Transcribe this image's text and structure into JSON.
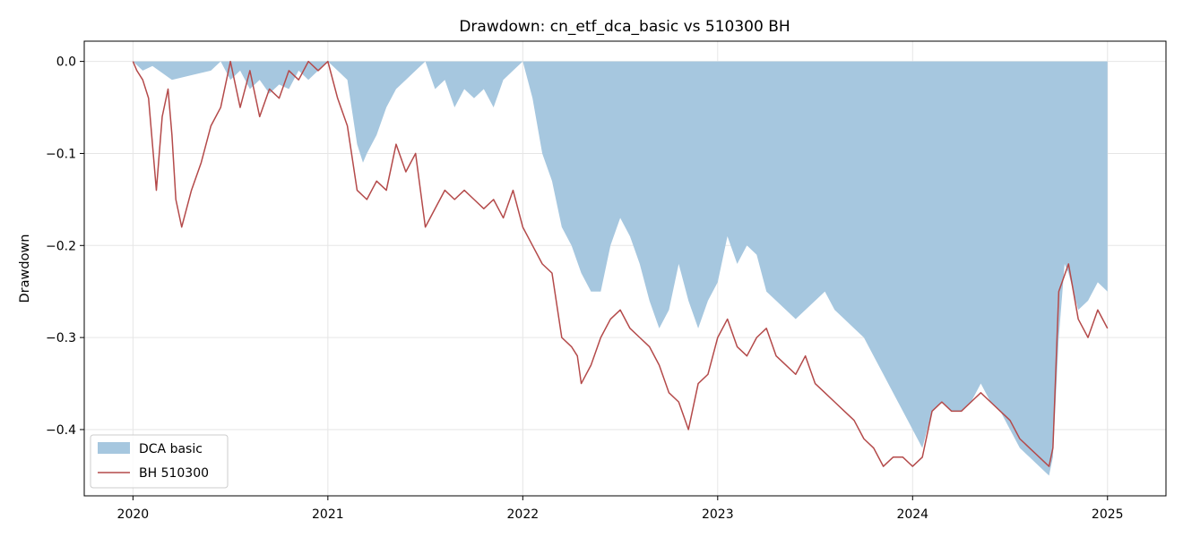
{
  "chart_data": {
    "type": "area",
    "title": "Drawdown: cn_etf_dca_basic vs 510300 BH",
    "xlabel": "",
    "ylabel": "Drawdown",
    "x_ticks": [
      "2020",
      "2021",
      "2022",
      "2023",
      "2024",
      "2025"
    ],
    "y_ticks": [
      0.0,
      -0.1,
      -0.2,
      -0.3,
      -0.4
    ],
    "y_tick_labels": [
      "0.0",
      "−0.1",
      "−0.2",
      "−0.3",
      "−0.4"
    ],
    "xlim": [
      2019.75,
      2025.3
    ],
    "ylim": [
      -0.472,
      0.022
    ],
    "grid": true,
    "legend_position": "lower-left",
    "series": [
      {
        "name": "DCA basic",
        "kind": "area",
        "color": "#a6c7df",
        "x": [
          2020.0,
          2020.05,
          2020.1,
          2020.2,
          2020.3,
          2020.4,
          2020.45,
          2020.5,
          2020.55,
          2020.6,
          2020.65,
          2020.7,
          2020.75,
          2020.8,
          2020.85,
          2020.9,
          2020.95,
          2021.0,
          2021.05,
          2021.1,
          2021.15,
          2021.18,
          2021.2,
          2021.25,
          2021.3,
          2021.35,
          2021.4,
          2021.45,
          2021.5,
          2021.55,
          2021.6,
          2021.65,
          2021.7,
          2021.75,
          2021.8,
          2021.85,
          2021.9,
          2021.95,
          2022.0,
          2022.05,
          2022.1,
          2022.15,
          2022.2,
          2022.25,
          2022.3,
          2022.35,
          2022.4,
          2022.45,
          2022.5,
          2022.55,
          2022.6,
          2022.65,
          2022.7,
          2022.75,
          2022.8,
          2022.85,
          2022.9,
          2022.95,
          2023.0,
          2023.05,
          2023.1,
          2023.15,
          2023.2,
          2023.25,
          2023.3,
          2023.35,
          2023.4,
          2023.45,
          2023.5,
          2023.55,
          2023.6,
          2023.65,
          2023.7,
          2023.75,
          2023.8,
          2023.85,
          2023.9,
          2023.95,
          2024.0,
          2024.05,
          2024.1,
          2024.15,
          2024.2,
          2024.25,
          2024.3,
          2024.35,
          2024.4,
          2024.45,
          2024.5,
          2024.55,
          2024.6,
          2024.65,
          2024.7,
          2024.72,
          2024.75,
          2024.78,
          2024.8,
          2024.85,
          2024.9,
          2024.95,
          2025.0
        ],
        "values": [
          0.0,
          -0.01,
          -0.005,
          -0.02,
          -0.015,
          -0.01,
          0.0,
          -0.02,
          -0.01,
          -0.03,
          -0.02,
          -0.035,
          -0.025,
          -0.03,
          -0.01,
          -0.02,
          -0.01,
          0.0,
          -0.01,
          -0.02,
          -0.09,
          -0.11,
          -0.1,
          -0.08,
          -0.05,
          -0.03,
          -0.02,
          -0.01,
          0.0,
          -0.03,
          -0.02,
          -0.05,
          -0.03,
          -0.04,
          -0.03,
          -0.05,
          -0.02,
          -0.01,
          0.0,
          -0.04,
          -0.1,
          -0.13,
          -0.18,
          -0.2,
          -0.23,
          -0.25,
          -0.25,
          -0.2,
          -0.17,
          -0.19,
          -0.22,
          -0.26,
          -0.29,
          -0.27,
          -0.22,
          -0.26,
          -0.29,
          -0.26,
          -0.24,
          -0.19,
          -0.22,
          -0.2,
          -0.21,
          -0.25,
          -0.26,
          -0.27,
          -0.28,
          -0.27,
          -0.26,
          -0.25,
          -0.27,
          -0.28,
          -0.29,
          -0.3,
          -0.32,
          -0.34,
          -0.36,
          -0.38,
          -0.4,
          -0.42,
          -0.38,
          -0.37,
          -0.38,
          -0.38,
          -0.37,
          -0.35,
          -0.37,
          -0.38,
          -0.4,
          -0.42,
          -0.43,
          -0.44,
          -0.45,
          -0.43,
          -0.3,
          -0.22,
          -0.23,
          -0.27,
          -0.26,
          -0.24,
          -0.25
        ]
      },
      {
        "name": "BH 510300",
        "kind": "line",
        "color": "#b44a4a",
        "x": [
          2020.0,
          2020.02,
          2020.05,
          2020.08,
          2020.12,
          2020.15,
          2020.18,
          2020.2,
          2020.22,
          2020.25,
          2020.3,
          2020.35,
          2020.4,
          2020.45,
          2020.5,
          2020.55,
          2020.6,
          2020.65,
          2020.7,
          2020.75,
          2020.8,
          2020.85,
          2020.9,
          2020.95,
          2021.0,
          2021.05,
          2021.1,
          2021.15,
          2021.2,
          2021.25,
          2021.3,
          2021.35,
          2021.4,
          2021.45,
          2021.5,
          2021.55,
          2021.6,
          2021.65,
          2021.7,
          2021.75,
          2021.8,
          2021.85,
          2021.9,
          2021.95,
          2022.0,
          2022.05,
          2022.1,
          2022.15,
          2022.2,
          2022.25,
          2022.28,
          2022.3,
          2022.35,
          2022.4,
          2022.45,
          2022.5,
          2022.55,
          2022.6,
          2022.65,
          2022.7,
          2022.75,
          2022.8,
          2022.85,
          2022.9,
          2022.95,
          2023.0,
          2023.05,
          2023.1,
          2023.15,
          2023.2,
          2023.25,
          2023.3,
          2023.35,
          2023.4,
          2023.45,
          2023.5,
          2023.55,
          2023.6,
          2023.65,
          2023.7,
          2023.75,
          2023.8,
          2023.85,
          2023.9,
          2023.95,
          2024.0,
          2024.05,
          2024.1,
          2024.15,
          2024.2,
          2024.25,
          2024.3,
          2024.35,
          2024.4,
          2024.45,
          2024.5,
          2024.55,
          2024.6,
          2024.65,
          2024.7,
          2024.72,
          2024.75,
          2024.8,
          2024.85,
          2024.9,
          2024.95,
          2025.0
        ],
        "values": [
          0.0,
          -0.01,
          -0.02,
          -0.04,
          -0.14,
          -0.06,
          -0.03,
          -0.08,
          -0.15,
          -0.18,
          -0.14,
          -0.11,
          -0.07,
          -0.05,
          0.0,
          -0.05,
          -0.01,
          -0.06,
          -0.03,
          -0.04,
          -0.01,
          -0.02,
          0.0,
          -0.01,
          0.0,
          -0.04,
          -0.07,
          -0.14,
          -0.15,
          -0.13,
          -0.14,
          -0.09,
          -0.12,
          -0.1,
          -0.18,
          -0.16,
          -0.14,
          -0.15,
          -0.14,
          -0.15,
          -0.16,
          -0.15,
          -0.17,
          -0.14,
          -0.18,
          -0.2,
          -0.22,
          -0.23,
          -0.3,
          -0.31,
          -0.32,
          -0.35,
          -0.33,
          -0.3,
          -0.28,
          -0.27,
          -0.29,
          -0.3,
          -0.31,
          -0.33,
          -0.36,
          -0.37,
          -0.4,
          -0.35,
          -0.34,
          -0.3,
          -0.28,
          -0.31,
          -0.32,
          -0.3,
          -0.29,
          -0.32,
          -0.33,
          -0.34,
          -0.32,
          -0.35,
          -0.36,
          -0.37,
          -0.38,
          -0.39,
          -0.41,
          -0.42,
          -0.44,
          -0.43,
          -0.43,
          -0.44,
          -0.43,
          -0.38,
          -0.37,
          -0.38,
          -0.38,
          -0.37,
          -0.36,
          -0.37,
          -0.38,
          -0.39,
          -0.41,
          -0.42,
          -0.43,
          -0.44,
          -0.42,
          -0.25,
          -0.22,
          -0.28,
          -0.3,
          -0.27,
          -0.29
        ]
      }
    ]
  }
}
